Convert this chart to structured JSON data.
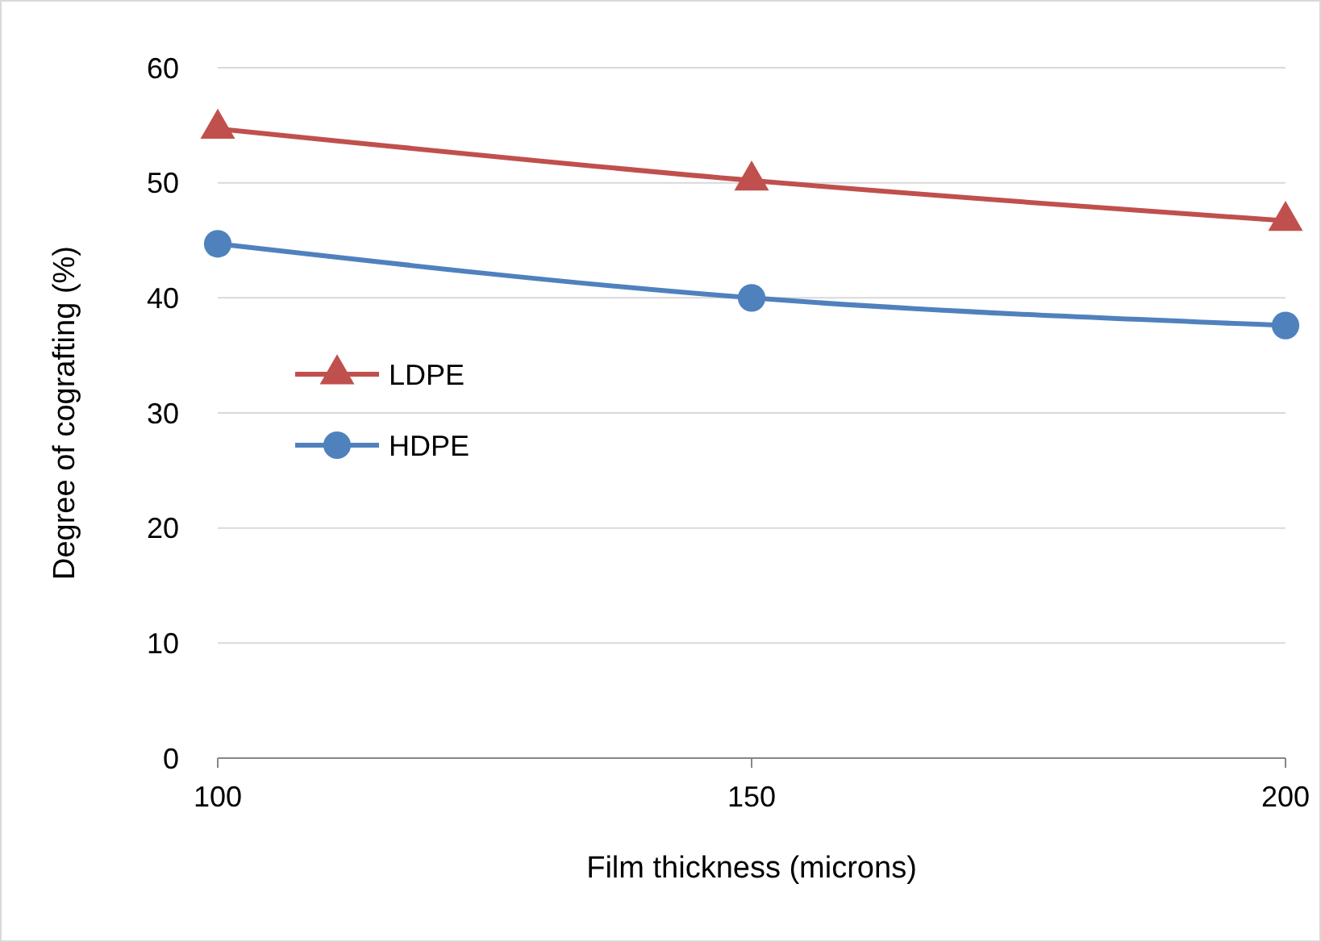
{
  "chart_data": {
    "type": "line",
    "xlabel": "Film thickness (microns)",
    "ylabel": "Degree of cografting (%)",
    "x": [
      100,
      150,
      200
    ],
    "xlim": [
      100,
      200
    ],
    "xticks": [
      100,
      150,
      200
    ],
    "ylim": [
      0,
      60
    ],
    "yticks": [
      0,
      10,
      20,
      30,
      40,
      50,
      60
    ],
    "grid": "y",
    "legend": "left",
    "series": [
      {
        "name": "LDPE",
        "color": "#c0504d",
        "marker": "triangle",
        "values": [
          54.7,
          50.2,
          46.7
        ]
      },
      {
        "name": "HDPE",
        "color": "#4f81bd",
        "marker": "circle",
        "values": [
          44.7,
          40.0,
          37.6
        ]
      }
    ]
  }
}
